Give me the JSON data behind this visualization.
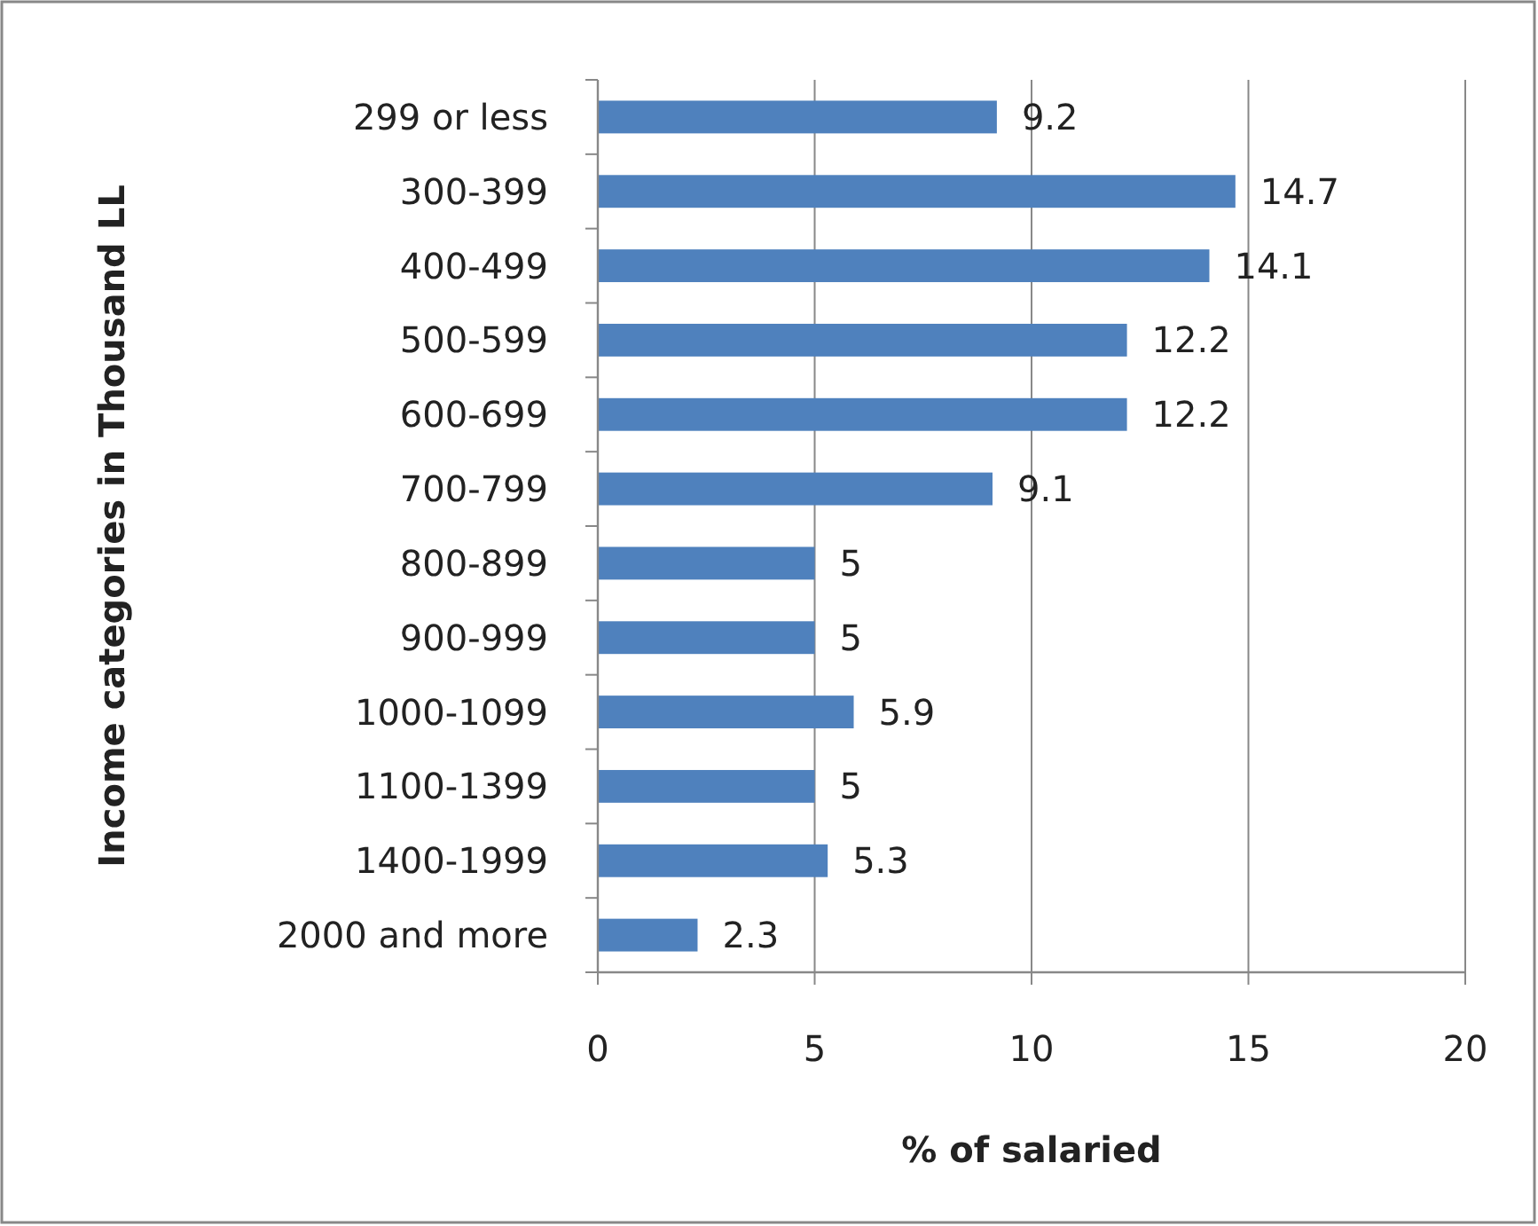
{
  "chart_data": {
    "type": "bar",
    "orientation": "horizontal",
    "xlabel": "% of salaried",
    "ylabel": "Income categories in Thousand LL",
    "categories": [
      "299 or less",
      "300-399",
      "400-499",
      "500-599",
      "600-699",
      "700-799",
      "800-899",
      "900-999",
      "1000-1099",
      "1100-1399",
      "1400-1999",
      "2000 and more"
    ],
    "values": [
      9.2,
      14.7,
      14.1,
      12.2,
      12.2,
      9.1,
      5,
      5,
      5.9,
      5,
      5.3,
      2.3
    ],
    "color": "#4f81bd",
    "xlim": [
      0,
      20
    ],
    "xticks": [
      0,
      5,
      10,
      15,
      20
    ],
    "grid": "x",
    "data_labels": true
  }
}
